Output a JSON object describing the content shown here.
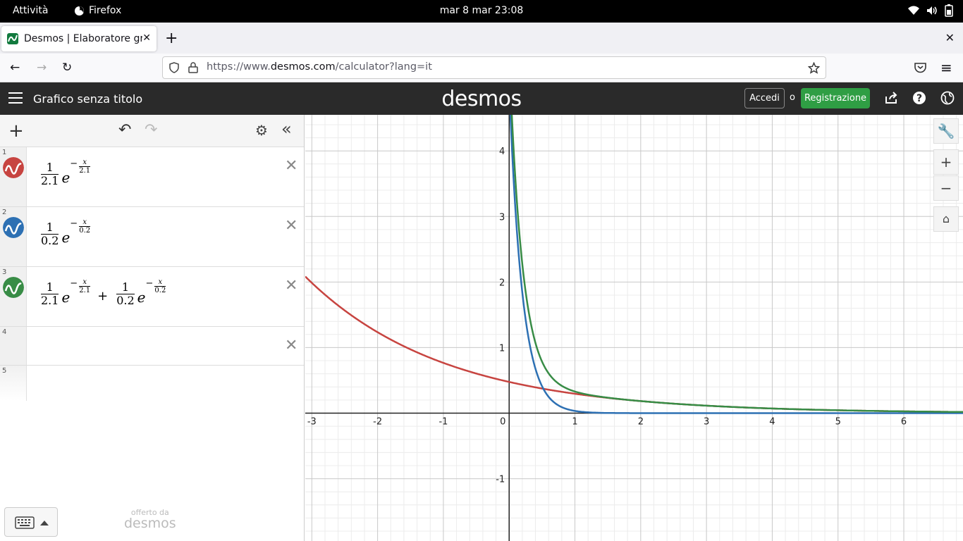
{
  "system_bar": {
    "activities": "Attività",
    "app_name": "Firefox",
    "clock": "mar 8 mar  23:08"
  },
  "browser": {
    "tab_title": "Desmos | Elaboratore grafico",
    "new_tab": "+",
    "url_prefix": "https://www.",
    "url_domain": "desmos.com",
    "url_path": "/calculator?lang=it"
  },
  "desmos_header": {
    "graph_title": "Grafico senza titolo",
    "logo": "desmos",
    "login_label": "Accedi",
    "or_label": "o",
    "signup_label": "Registrazione",
    "signup_color": "#2f9e44"
  },
  "expressions": [
    {
      "index": "1",
      "color": "#c74440",
      "coef_num": "1",
      "coef_den": "2.1",
      "base": "e",
      "sign": "−",
      "exp_num": "x",
      "exp_den": "2.1"
    },
    {
      "index": "2",
      "color": "#2d70b3",
      "coef_num": "1",
      "coef_den": "0.2",
      "base": "e",
      "sign": "−",
      "exp_num": "x",
      "exp_den": "0.2"
    },
    {
      "index": "3",
      "color": "#388c46",
      "t1": {
        "coef_num": "1",
        "coef_den": "2.1",
        "base": "e",
        "sign": "−",
        "exp_num": "x",
        "exp_den": "2.1"
      },
      "op": "+",
      "t2": {
        "coef_num": "1",
        "coef_den": "0.2",
        "base": "e",
        "sign": "−",
        "exp_num": "x",
        "exp_den": "0.2"
      }
    },
    {
      "index": "4"
    },
    {
      "index": "5"
    }
  ],
  "footer": {
    "powered_small": "offerto da",
    "powered_logo": "desmos"
  },
  "graph": {
    "x_range": [
      -3.1,
      6.9
    ],
    "y_range": [
      -1.95,
      4.55
    ],
    "x_ticks": [
      "-3",
      "-2",
      "-1",
      "0",
      "1",
      "2",
      "3",
      "4",
      "5",
      "6"
    ],
    "y_ticks": [
      "4",
      "3",
      "2",
      "1",
      "-1"
    ],
    "curves": [
      {
        "expr": "(1/2.1)e^(-x/2.1)",
        "color": "#c74440"
      },
      {
        "expr": "(1/0.2)e^(-x/0.2)",
        "color": "#2d70b3"
      },
      {
        "expr": "(1/2.1)e^(-x/2.1)+(1/0.2)e^(-x/0.2)",
        "color": "#388c46"
      }
    ]
  }
}
